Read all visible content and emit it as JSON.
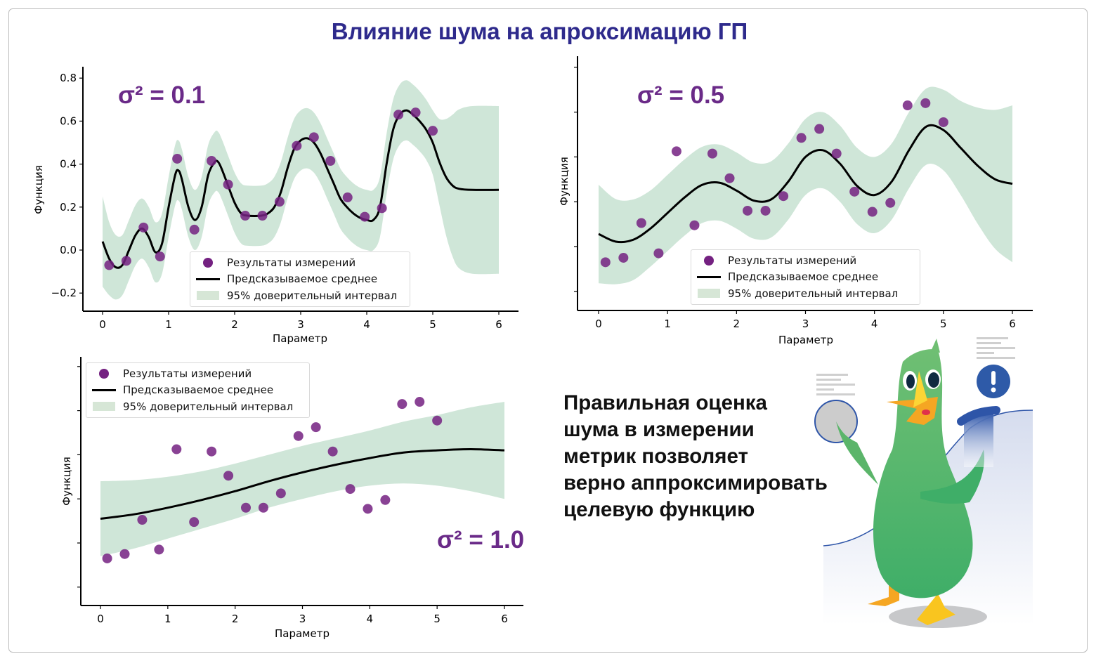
{
  "title": "Влияние шума на апроксимацию ГП",
  "message": [
    "Правильная оценка",
    "шума в измерении",
    "метрик позволяет",
    "верно аппроксимировать",
    "целевую функцию"
  ],
  "colors": {
    "title": "#2e2a8c",
    "points": "#742181",
    "mean": "#000000",
    "band": "#cfe6d8",
    "noise_label": "#6a2a88"
  },
  "illustration": {
    "icons": [
      "duck-mascot-icon",
      "exclamation-icon",
      "gray-circle-icon"
    ]
  },
  "chart_data": [
    {
      "type": "line",
      "noise_label": "σ² = 0.1",
      "xlabel": "Параметр",
      "ylabel": "Функция",
      "xlim": [
        -0.3,
        6.3
      ],
      "ylim": [
        -0.29,
        0.86
      ],
      "xticks": [
        "0",
        "1",
        "2",
        "3",
        "4",
        "5",
        "6"
      ],
      "yticks": [
        "−0.2",
        "0.0",
        "0.2",
        "0.4",
        "0.6",
        "0.8"
      ],
      "ytick_values": [
        -0.2,
        0,
        0.2,
        0.4,
        0.6,
        0.8
      ],
      "ytick_labels_shown": true,
      "legend": {
        "position": "lower-center",
        "items": [
          "Результаты измерений",
          "Предсказываемое среднее",
          "95% доверительный интервал"
        ]
      },
      "points": {
        "x": [
          0.1,
          0.36,
          0.62,
          0.87,
          1.13,
          1.39,
          1.65,
          1.9,
          2.16,
          2.42,
          2.68,
          2.94,
          3.2,
          3.45,
          3.71,
          3.97,
          4.23,
          4.48,
          4.74,
          5.0
        ],
        "y": [
          -0.07,
          -0.05,
          0.105,
          -0.03,
          0.425,
          0.095,
          0.415,
          0.305,
          0.16,
          0.16,
          0.225,
          0.485,
          0.525,
          0.415,
          0.245,
          0.155,
          0.195,
          0.63,
          0.64,
          0.555
        ]
      },
      "curve_x": [
        0,
        0.1,
        0.2,
        0.3,
        0.4,
        0.5,
        0.6,
        0.7,
        0.8,
        0.9,
        1.0,
        1.1,
        1.15,
        1.2,
        1.3,
        1.4,
        1.5,
        1.6,
        1.7,
        1.75,
        1.8,
        1.9,
        2.0,
        2.1,
        2.2,
        2.4,
        2.5,
        2.6,
        2.7,
        2.8,
        2.9,
        3.0,
        3.1,
        3.2,
        3.3,
        3.4,
        3.5,
        3.6,
        3.7,
        3.8,
        3.9,
        4.0,
        4.1,
        4.2,
        4.3,
        4.4,
        4.5,
        4.6,
        4.7,
        4.8,
        4.9,
        5.0,
        5.1,
        5.2,
        5.3,
        5.4,
        5.6,
        6.0
      ],
      "mean": [
        0.04,
        -0.04,
        -0.08,
        -0.07,
        0.0,
        0.07,
        0.1,
        0.06,
        -0.01,
        0.03,
        0.2,
        0.35,
        0.37,
        0.33,
        0.2,
        0.14,
        0.2,
        0.35,
        0.41,
        0.41,
        0.38,
        0.3,
        0.22,
        0.17,
        0.16,
        0.16,
        0.17,
        0.2,
        0.27,
        0.38,
        0.47,
        0.51,
        0.52,
        0.5,
        0.45,
        0.38,
        0.31,
        0.24,
        0.2,
        0.17,
        0.15,
        0.14,
        0.14,
        0.2,
        0.4,
        0.56,
        0.63,
        0.65,
        0.63,
        0.6,
        0.56,
        0.5,
        0.41,
        0.34,
        0.3,
        0.285,
        0.28,
        0.28
      ],
      "ci_lower": [
        -0.17,
        -0.21,
        -0.23,
        -0.21,
        -0.14,
        -0.07,
        -0.04,
        -0.08,
        -0.15,
        -0.11,
        0.06,
        0.21,
        0.23,
        0.19,
        0.06,
        0.0,
        0.06,
        0.21,
        0.27,
        0.27,
        0.24,
        0.16,
        0.08,
        0.03,
        0.02,
        0.02,
        0.03,
        0.06,
        0.13,
        0.24,
        0.33,
        0.37,
        0.38,
        0.36,
        0.31,
        0.24,
        0.17,
        0.1,
        0.06,
        0.03,
        0.01,
        0.0,
        0.0,
        0.06,
        0.26,
        0.42,
        0.49,
        0.51,
        0.49,
        0.46,
        0.42,
        0.35,
        0.21,
        0.07,
        -0.03,
        -0.085,
        -0.11,
        -0.11
      ],
      "ci_upper": [
        0.25,
        0.13,
        0.07,
        0.07,
        0.14,
        0.21,
        0.24,
        0.2,
        0.13,
        0.17,
        0.34,
        0.49,
        0.51,
        0.47,
        0.34,
        0.28,
        0.34,
        0.49,
        0.55,
        0.55,
        0.52,
        0.44,
        0.36,
        0.31,
        0.3,
        0.3,
        0.31,
        0.34,
        0.41,
        0.52,
        0.61,
        0.65,
        0.66,
        0.64,
        0.59,
        0.52,
        0.45,
        0.38,
        0.34,
        0.31,
        0.29,
        0.28,
        0.28,
        0.34,
        0.54,
        0.7,
        0.77,
        0.79,
        0.77,
        0.74,
        0.7,
        0.65,
        0.61,
        0.61,
        0.63,
        0.655,
        0.67,
        0.67
      ]
    },
    {
      "type": "line",
      "noise_label": "σ² = 0.5",
      "xlabel": "Параметр",
      "ylabel": "Функция",
      "xlim": [
        -0.3,
        6.3
      ],
      "ylim": [
        -0.29,
        0.85
      ],
      "xticks": [
        "0",
        "1",
        "2",
        "3",
        "4",
        "5",
        "6"
      ],
      "ytick_values": [
        -0.2,
        0,
        0.2,
        0.4,
        0.6,
        0.8
      ],
      "ytick_labels_shown": false,
      "legend": {
        "position": "lower-center",
        "items": [
          "Результаты измерений",
          "Предсказываемое среднее",
          "95% доверительный интервал"
        ]
      },
      "points": {
        "x": [
          0.1,
          0.36,
          0.62,
          0.87,
          1.13,
          1.39,
          1.65,
          1.9,
          2.16,
          2.42,
          2.68,
          2.94,
          3.2,
          3.45,
          3.71,
          3.97,
          4.23,
          4.48,
          4.74,
          5.0
        ],
        "y": [
          -0.07,
          -0.05,
          0.105,
          -0.03,
          0.425,
          0.095,
          0.415,
          0.305,
          0.16,
          0.16,
          0.225,
          0.485,
          0.525,
          0.415,
          0.245,
          0.155,
          0.195,
          0.63,
          0.64,
          0.555
        ]
      },
      "curve_x": [
        0,
        0.25,
        0.5,
        0.75,
        1,
        1.25,
        1.5,
        1.75,
        2,
        2.25,
        2.5,
        2.75,
        3,
        3.25,
        3.5,
        3.75,
        4,
        4.25,
        4.5,
        4.75,
        5,
        5.25,
        5.5,
        5.75,
        6
      ],
      "mean": [
        0.056,
        0.022,
        0.03,
        0.08,
        0.15,
        0.22,
        0.275,
        0.285,
        0.25,
        0.205,
        0.21,
        0.29,
        0.4,
        0.43,
        0.37,
        0.27,
        0.23,
        0.29,
        0.43,
        0.535,
        0.52,
        0.44,
        0.36,
        0.3,
        0.28
      ],
      "ci_lower": [
        -0.164,
        -0.168,
        -0.15,
        -0.09,
        -0.02,
        0.05,
        0.105,
        0.115,
        0.08,
        0.035,
        0.04,
        0.12,
        0.23,
        0.26,
        0.2,
        0.1,
        0.06,
        0.12,
        0.26,
        0.365,
        0.34,
        0.23,
        0.1,
        -0.01,
        -0.07
      ],
      "ci_upper": [
        0.276,
        0.212,
        0.21,
        0.25,
        0.32,
        0.39,
        0.445,
        0.455,
        0.42,
        0.375,
        0.38,
        0.46,
        0.57,
        0.6,
        0.54,
        0.44,
        0.4,
        0.46,
        0.6,
        0.705,
        0.7,
        0.65,
        0.62,
        0.61,
        0.63
      ]
    },
    {
      "type": "line",
      "noise_label": "σ² = 1.0",
      "xlabel": "Параметр",
      "ylabel": "Функция",
      "xlim": [
        -0.3,
        6.3
      ],
      "ylim": [
        -0.29,
        0.85
      ],
      "xticks": [
        "0",
        "1",
        "2",
        "3",
        "4",
        "5",
        "6"
      ],
      "ytick_values": [
        -0.2,
        0,
        0.2,
        0.4,
        0.6,
        0.8
      ],
      "ytick_labels_shown": false,
      "legend": {
        "position": "upper-left",
        "items": [
          "Результаты измерений",
          "Предсказываемое среднее",
          "95% доверительный интервал"
        ]
      },
      "points": {
        "x": [
          0.1,
          0.36,
          0.62,
          0.87,
          1.13,
          1.39,
          1.65,
          1.9,
          2.16,
          2.42,
          2.68,
          2.94,
          3.2,
          3.45,
          3.71,
          3.97,
          4.23,
          4.48,
          4.74,
          5.0
        ],
        "y": [
          -0.07,
          -0.05,
          0.105,
          -0.03,
          0.425,
          0.095,
          0.415,
          0.305,
          0.16,
          0.16,
          0.225,
          0.485,
          0.525,
          0.415,
          0.245,
          0.155,
          0.195,
          0.63,
          0.64,
          0.555
        ]
      },
      "curve_x": [
        0,
        0.5,
        1,
        1.5,
        2,
        2.5,
        3,
        3.5,
        4,
        4.5,
        5,
        5.5,
        6
      ],
      "mean": [
        0.11,
        0.13,
        0.16,
        0.195,
        0.235,
        0.28,
        0.32,
        0.355,
        0.385,
        0.41,
        0.42,
        0.425,
        0.42
      ],
      "ci_lower": [
        -0.06,
        -0.025,
        0.02,
        0.065,
        0.11,
        0.16,
        0.2,
        0.235,
        0.26,
        0.27,
        0.26,
        0.235,
        0.2
      ],
      "ci_upper": [
        0.28,
        0.285,
        0.3,
        0.325,
        0.36,
        0.4,
        0.44,
        0.475,
        0.51,
        0.55,
        0.58,
        0.615,
        0.64
      ]
    }
  ]
}
